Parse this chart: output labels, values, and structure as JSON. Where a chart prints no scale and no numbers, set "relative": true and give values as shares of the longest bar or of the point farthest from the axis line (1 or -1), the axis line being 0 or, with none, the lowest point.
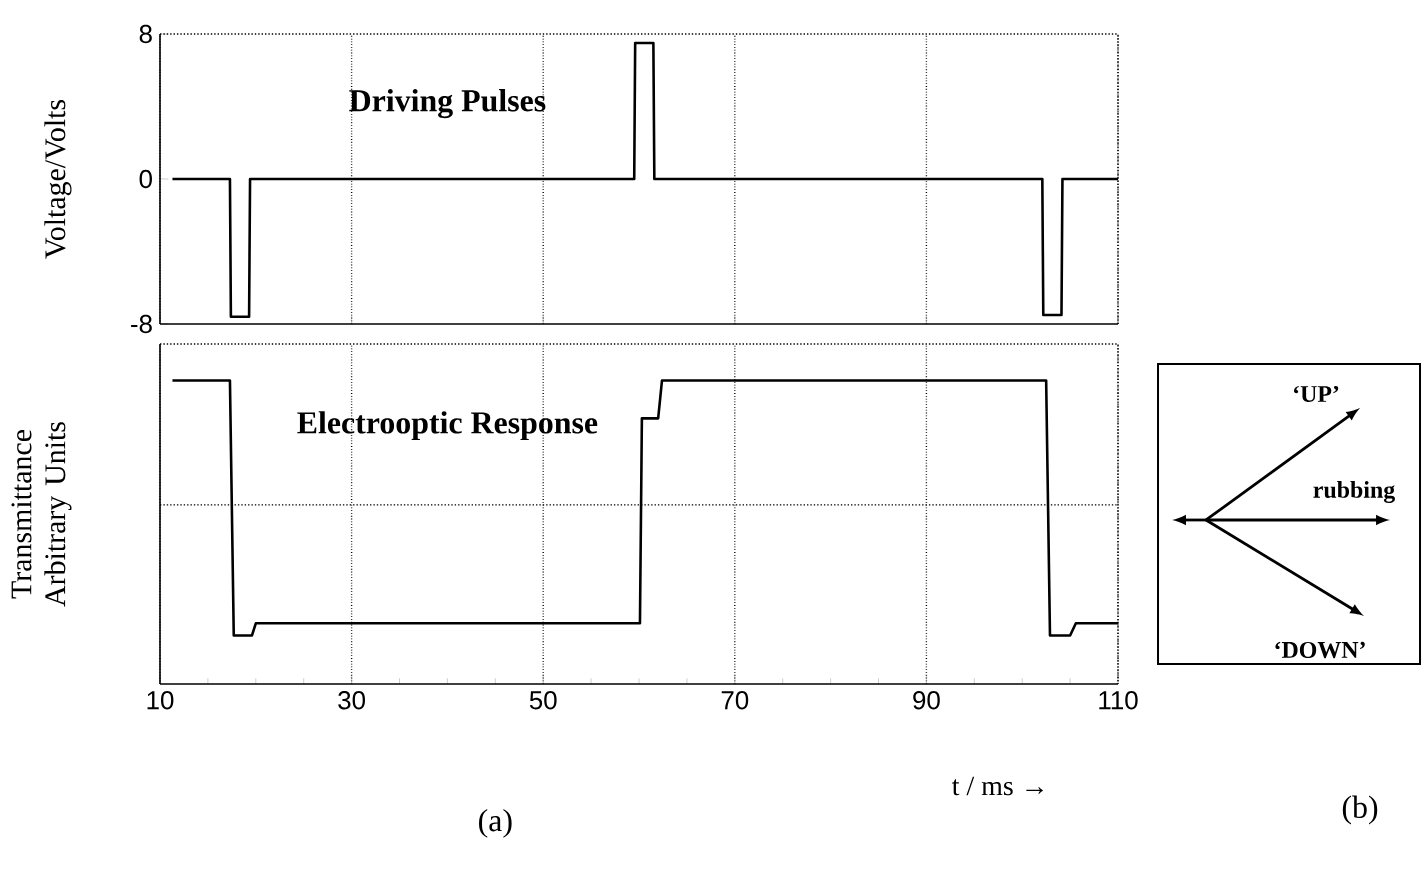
{
  "chart_data": [
    {
      "type": "line",
      "title": "Driving Pulses",
      "ylabel": "Voltage/Volts",
      "xlim": [
        10,
        110
      ],
      "xticks": [
        10,
        30,
        50,
        70,
        90,
        110
      ],
      "ylim": [
        -8,
        8
      ],
      "yticks": [
        -8,
        0,
        8
      ],
      "grid": "x",
      "tick_labels": "y",
      "series": [
        {
          "color": "#000000",
          "x": [
            11.3,
            17.3,
            17.4,
            19.3,
            19.4,
            59.5,
            59.6,
            61.5,
            61.6,
            102.1,
            102.2,
            104.1,
            104.2,
            110
          ],
          "values": [
            0,
            0,
            -7.6,
            -7.6,
            0,
            0,
            7.5,
            7.5,
            0,
            0,
            -7.5,
            -7.5,
            0,
            0
          ]
        }
      ]
    },
    {
      "type": "line",
      "title": "Electrooptic Response",
      "ylabel": "Transmittance Arbitrary Units",
      "xlabel": "t / ms →",
      "xlim": [
        10,
        110
      ],
      "xticks": [
        10,
        30,
        50,
        70,
        90,
        110
      ],
      "relative": true,
      "grid": "x",
      "tick_labels": "x",
      "ref_lines": [
        {
          "axis": "y",
          "value": 0.59,
          "line_style": "dotted"
        }
      ],
      "annotations": [
        "(a)"
      ],
      "series": [
        {
          "color": "#000000",
          "x": [
            11.3,
            17.3,
            17.7,
            19.6,
            20.0,
            60.1,
            60.3,
            62.0,
            62.4,
            102.5,
            102.9,
            105.0,
            105.6,
            110
          ],
          "values": [
            1,
            1,
            0.16,
            0.16,
            0.2,
            0.2,
            0.875,
            0.875,
            1,
            1,
            0.16,
            0.16,
            0.2,
            0.2
          ]
        }
      ]
    },
    {
      "type": "other",
      "annotations": [
        "‘UP’",
        "rubbing",
        "‘DOWN’",
        "(b)"
      ]
    }
  ]
}
